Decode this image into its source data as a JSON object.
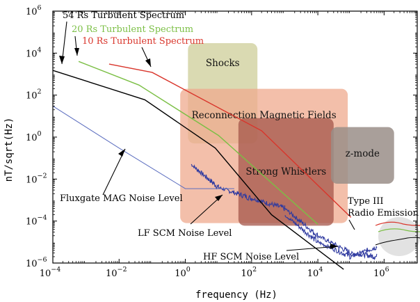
{
  "chart_data": {
    "type": "line",
    "xlabel": "frequency (Hz)",
    "ylabel": "nT/sqrt(Hz)",
    "xscale": "log",
    "yscale": "log",
    "xlim": [
      0.0001,
      10000000
    ],
    "ylim": [
      1e-06,
      1000000
    ],
    "x_ticks": [
      {
        "value": 0.0001,
        "base": "10",
        "exp": "−4"
      },
      {
        "value": 0.01,
        "base": "10",
        "exp": "−2"
      },
      {
        "value": 1,
        "base": "10",
        "exp": "0"
      },
      {
        "value": 100,
        "base": "10",
        "exp": "2"
      },
      {
        "value": 10000,
        "base": "10",
        "exp": "4"
      },
      {
        "value": 1000000,
        "base": "10",
        "exp": "6"
      }
    ],
    "y_ticks": [
      {
        "value": 1e-06,
        "base": "10",
        "exp": "−6"
      },
      {
        "value": 0.0001,
        "base": "10",
        "exp": "−4"
      },
      {
        "value": 0.01,
        "base": "10",
        "exp": "−2"
      },
      {
        "value": 1,
        "base": "10",
        "exp": "0"
      },
      {
        "value": 100,
        "base": "10",
        "exp": "2"
      },
      {
        "value": 10000,
        "base": "10",
        "exp": "4"
      },
      {
        "value": 1000000,
        "base": "10",
        "exp": "6"
      }
    ],
    "regions": [
      {
        "label": "Shocks",
        "x": [
          1.2,
          150
        ],
        "y": [
          0.5,
          30000
        ],
        "color": "#d4d3a4",
        "opacity": 0.85
      },
      {
        "label": "Reconnection Magnetic Fields",
        "x": [
          0.7,
          80000
        ],
        "y": [
          8e-05,
          200
        ],
        "color": "#efaa8e",
        "opacity": 0.75
      },
      {
        "label": "Strong Whistlers",
        "x": [
          40,
          30000
        ],
        "y": [
          6e-05,
          8
        ],
        "color": "#a4564a",
        "opacity": 0.75
      },
      {
        "label": "z-mode",
        "x": [
          25000,
          2000000
        ],
        "y": [
          0.006,
          3
        ],
        "color": "#9a8e88",
        "opacity": 0.85
      }
    ],
    "series": [
      {
        "name": "54 Rs Turbulent Spectrum",
        "color": "#000000",
        "x": [
          0.0001,
          0.06,
          8,
          400,
          60000
        ],
        "y": [
          1500,
          60,
          0.3,
          0.0002,
          5e-07
        ]
      },
      {
        "name": "20 Rs Turbulent Spectrum",
        "color": "#7bbf45",
        "x": [
          0.0006,
          0.04,
          10,
          10000
        ],
        "y": [
          4000,
          300,
          1.2,
          7e-05
        ]
      },
      {
        "name": "10 Rs Turbulent Spectrum",
        "color": "#d9352b",
        "x": [
          0.005,
          0.1,
          200,
          100000
        ],
        "y": [
          3000,
          1200,
          2,
          0.00015
        ]
      },
      {
        "name": "Fluxgate MAG Noise Level",
        "color": "#5b6dbf",
        "x": [
          0.0001,
          0.01,
          1,
          30
        ],
        "y": [
          30,
          0.3,
          0.0035,
          0.0035
        ]
      }
    ],
    "noise_curves": [
      {
        "name": "LF SCM Noise Level",
        "color": "#2f3aa0",
        "x": [
          1.5,
          10,
          100,
          1000,
          10000,
          100000,
          600000
        ],
        "y": [
          0.05,
          0.004,
          0.0012,
          0.0004,
          2e-05,
          3e-06,
          2e-06
        ]
      },
      {
        "name": "HF SCM Noise Level",
        "color": "#2f3aa0",
        "x": [
          1000,
          10000,
          100000,
          600000
        ],
        "y": [
          0.0002,
          1e-05,
          2e-06,
          6e-06
        ]
      }
    ],
    "annotations": [
      {
        "text": "54 Rs Turbulent Spectrum",
        "color": "#000000"
      },
      {
        "text": "20 Rs Turbulent Spectrum",
        "color": "#7bbf45"
      },
      {
        "text": "10 Rs Turbulent Spectrum",
        "color": "#d9352b"
      },
      {
        "text": "Fluxgate MAG Noise Level",
        "color": "#000000"
      },
      {
        "text": "LF SCM Noise Level",
        "color": "#000000"
      },
      {
        "text": "HF SCM Noise Level",
        "color": "#000000"
      },
      {
        "text": "Type III",
        "color": "#000000"
      },
      {
        "text": "Radio Emission",
        "color": "#000000"
      }
    ]
  }
}
